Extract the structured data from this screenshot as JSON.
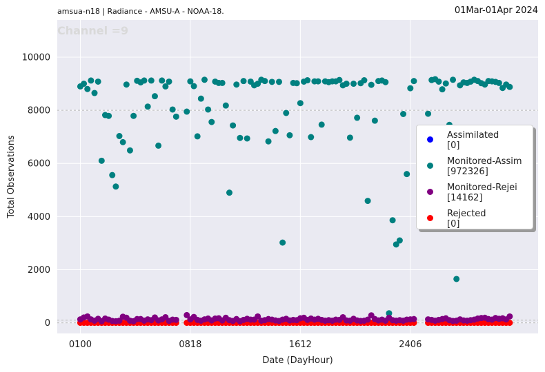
{
  "header": {
    "left_title": "amsua-n18  |  Radiance - AMSU-A - NOAA-18.",
    "right_title": "01Mar-01Apr 2024",
    "channel_label": "Channel =9"
  },
  "colors": {
    "plot_bg": "#eaeaf2",
    "grid": "#ffffff",
    "assimilated": "#0000ff",
    "monitored_assim": "#008080",
    "monitored_rejei": "#800080",
    "rejected": "#ff0000"
  },
  "legend": [
    {
      "name": "Assimilated",
      "count": "[0]",
      "color_key": "assimilated"
    },
    {
      "name": "Monitored-Assim",
      "count": "[972326]",
      "color_key": "monitored_assim"
    },
    {
      "name": "Monitored-Rejei",
      "count": "[14162]",
      "color_key": "monitored_rejei"
    },
    {
      "name": "Rejected",
      "count": "[0]",
      "color_key": "rejected"
    }
  ],
  "chart_data": {
    "type": "scatter",
    "title": "amsua-n18  |  Radiance - AMSU-A - NOAA-18.",
    "xlabel": "Date (DayHour)",
    "ylabel": "Total Observations",
    "x_tick_labels": [
      "0100",
      "0818",
      "1612",
      "2406"
    ],
    "x_tick_index": [
      0,
      31,
      62,
      93
    ],
    "y_ticks": [
      0,
      2000,
      4000,
      6000,
      8000,
      10000
    ],
    "xlim": [
      -6.5,
      129
    ],
    "ylim": [
      -400,
      11400
    ],
    "reference_lines": [
      8000,
      100,
      0
    ],
    "gap_index_ranges": [
      [
        28,
        29
      ],
      [
        95,
        97
      ]
    ],
    "series": [
      {
        "name": "Monitored-Assim",
        "color_key": "monitored_assim",
        "points": [
          [
            0,
            8900
          ],
          [
            1,
            9000
          ],
          [
            2,
            8800
          ],
          [
            3,
            9120
          ],
          [
            4,
            8650
          ],
          [
            5,
            9080
          ],
          [
            6,
            6100
          ],
          [
            7,
            7820
          ],
          [
            8,
            7790
          ],
          [
            9,
            5560
          ],
          [
            10,
            5130
          ],
          [
            11,
            7030
          ],
          [
            12,
            6800
          ],
          [
            13,
            8970
          ],
          [
            14,
            6490
          ],
          [
            15,
            7790
          ],
          [
            16,
            9110
          ],
          [
            17,
            9050
          ],
          [
            18,
            9120
          ],
          [
            19,
            8140
          ],
          [
            20,
            9120
          ],
          [
            21,
            8530
          ],
          [
            22,
            6670
          ],
          [
            23,
            9120
          ],
          [
            24,
            8900
          ],
          [
            25,
            9080
          ],
          [
            26,
            8030
          ],
          [
            27,
            7760
          ],
          [
            30,
            7950
          ],
          [
            31,
            9090
          ],
          [
            32,
            8910
          ],
          [
            33,
            7020
          ],
          [
            34,
            8440
          ],
          [
            35,
            9150
          ],
          [
            36,
            8030
          ],
          [
            37,
            7560
          ],
          [
            38,
            9080
          ],
          [
            39,
            9030
          ],
          [
            40,
            9030
          ],
          [
            41,
            8180
          ],
          [
            42,
            4900
          ],
          [
            43,
            7430
          ],
          [
            44,
            8970
          ],
          [
            45,
            6960
          ],
          [
            46,
            9100
          ],
          [
            47,
            6940
          ],
          [
            48,
            9080
          ],
          [
            49,
            8940
          ],
          [
            50,
            9000
          ],
          [
            51,
            9150
          ],
          [
            52,
            9100
          ],
          [
            53,
            6830
          ],
          [
            54,
            9070
          ],
          [
            55,
            7220
          ],
          [
            56,
            9070
          ],
          [
            57,
            3020
          ],
          [
            58,
            7900
          ],
          [
            59,
            7060
          ],
          [
            60,
            9030
          ],
          [
            61,
            9020
          ],
          [
            62,
            8270
          ],
          [
            63,
            9080
          ],
          [
            64,
            9130
          ],
          [
            65,
            6990
          ],
          [
            66,
            9090
          ],
          [
            67,
            9090
          ],
          [
            68,
            7460
          ],
          [
            69,
            9090
          ],
          [
            70,
            9060
          ],
          [
            71,
            9090
          ],
          [
            72,
            9090
          ],
          [
            73,
            9140
          ],
          [
            74,
            8940
          ],
          [
            75,
            9000
          ],
          [
            76,
            6970
          ],
          [
            77,
            9000
          ],
          [
            78,
            7720
          ],
          [
            79,
            9020
          ],
          [
            80,
            9130
          ],
          [
            81,
            4590
          ],
          [
            82,
            8960
          ],
          [
            83,
            7610
          ],
          [
            84,
            9100
          ],
          [
            85,
            9120
          ],
          [
            86,
            9060
          ],
          [
            87,
            360
          ],
          [
            88,
            3860
          ],
          [
            89,
            2950
          ],
          [
            90,
            3100
          ],
          [
            91,
            7860
          ],
          [
            92,
            5600
          ],
          [
            93,
            8830
          ],
          [
            94,
            9100
          ],
          [
            98,
            7870
          ],
          [
            99,
            9140
          ],
          [
            100,
            9170
          ],
          [
            101,
            9080
          ],
          [
            102,
            8790
          ],
          [
            103,
            9010
          ],
          [
            104,
            7450
          ],
          [
            105,
            9150
          ],
          [
            106,
            1650
          ],
          [
            107,
            8940
          ],
          [
            108,
            9050
          ],
          [
            109,
            9030
          ],
          [
            110,
            9080
          ],
          [
            111,
            9150
          ],
          [
            112,
            9100
          ],
          [
            113,
            9020
          ],
          [
            114,
            8970
          ],
          [
            115,
            9100
          ],
          [
            116,
            9090
          ],
          [
            117,
            9070
          ],
          [
            118,
            9030
          ],
          [
            119,
            8840
          ],
          [
            120,
            8970
          ],
          [
            121,
            8880
          ]
        ]
      },
      {
        "name": "Monitored-Rejei",
        "color_key": "monitored_rejei",
        "points": [
          [
            0,
            130
          ],
          [
            1,
            200
          ],
          [
            2,
            240
          ],
          [
            3,
            130
          ],
          [
            4,
            80
          ],
          [
            5,
            150
          ],
          [
            6,
            60
          ],
          [
            7,
            160
          ],
          [
            8,
            120
          ],
          [
            9,
            70
          ],
          [
            10,
            60
          ],
          [
            11,
            80
          ],
          [
            12,
            230
          ],
          [
            13,
            190
          ],
          [
            14,
            80
          ],
          [
            15,
            60
          ],
          [
            16,
            140
          ],
          [
            17,
            140
          ],
          [
            18,
            80
          ],
          [
            19,
            130
          ],
          [
            20,
            100
          ],
          [
            21,
            200
          ],
          [
            22,
            90
          ],
          [
            23,
            130
          ],
          [
            24,
            210
          ],
          [
            25,
            70
          ],
          [
            26,
            120
          ],
          [
            27,
            110
          ],
          [
            30,
            290
          ],
          [
            31,
            130
          ],
          [
            32,
            220
          ],
          [
            33,
            110
          ],
          [
            34,
            80
          ],
          [
            35,
            130
          ],
          [
            36,
            160
          ],
          [
            37,
            90
          ],
          [
            38,
            160
          ],
          [
            39,
            170
          ],
          [
            40,
            90
          ],
          [
            41,
            190
          ],
          [
            42,
            100
          ],
          [
            43,
            70
          ],
          [
            44,
            140
          ],
          [
            45,
            60
          ],
          [
            46,
            110
          ],
          [
            47,
            150
          ],
          [
            48,
            120
          ],
          [
            49,
            120
          ],
          [
            50,
            240
          ],
          [
            51,
            80
          ],
          [
            52,
            100
          ],
          [
            53,
            140
          ],
          [
            54,
            120
          ],
          [
            55,
            90
          ],
          [
            56,
            70
          ],
          [
            57,
            120
          ],
          [
            58,
            150
          ],
          [
            59,
            90
          ],
          [
            60,
            110
          ],
          [
            61,
            100
          ],
          [
            62,
            170
          ],
          [
            63,
            190
          ],
          [
            64,
            110
          ],
          [
            65,
            160
          ],
          [
            66,
            120
          ],
          [
            67,
            150
          ],
          [
            68,
            110
          ],
          [
            69,
            80
          ],
          [
            70,
            100
          ],
          [
            71,
            80
          ],
          [
            72,
            120
          ],
          [
            73,
            110
          ],
          [
            74,
            210
          ],
          [
            75,
            90
          ],
          [
            76,
            80
          ],
          [
            77,
            150
          ],
          [
            78,
            90
          ],
          [
            79,
            70
          ],
          [
            80,
            80
          ],
          [
            81,
            120
          ],
          [
            82,
            280
          ],
          [
            83,
            140
          ],
          [
            84,
            90
          ],
          [
            85,
            120
          ],
          [
            86,
            80
          ],
          [
            87,
            190
          ],
          [
            88,
            100
          ],
          [
            89,
            80
          ],
          [
            90,
            100
          ],
          [
            91,
            80
          ],
          [
            92,
            120
          ],
          [
            93,
            130
          ],
          [
            94,
            140
          ],
          [
            98,
            130
          ],
          [
            99,
            110
          ],
          [
            100,
            80
          ],
          [
            101,
            110
          ],
          [
            102,
            140
          ],
          [
            103,
            170
          ],
          [
            104,
            100
          ],
          [
            105,
            70
          ],
          [
            106,
            80
          ],
          [
            107,
            130
          ],
          [
            108,
            90
          ],
          [
            109,
            80
          ],
          [
            110,
            100
          ],
          [
            111,
            120
          ],
          [
            112,
            160
          ],
          [
            113,
            180
          ],
          [
            114,
            190
          ],
          [
            115,
            140
          ],
          [
            116,
            120
          ],
          [
            117,
            180
          ],
          [
            118,
            150
          ],
          [
            119,
            170
          ],
          [
            120,
            130
          ],
          [
            121,
            240
          ]
        ]
      },
      {
        "name": "Rejected",
        "color_key": "rejected",
        "y": 0,
        "x_range": [
          0,
          121
        ]
      },
      {
        "name": "Assimilated",
        "color_key": "assimilated",
        "points": []
      }
    ]
  }
}
